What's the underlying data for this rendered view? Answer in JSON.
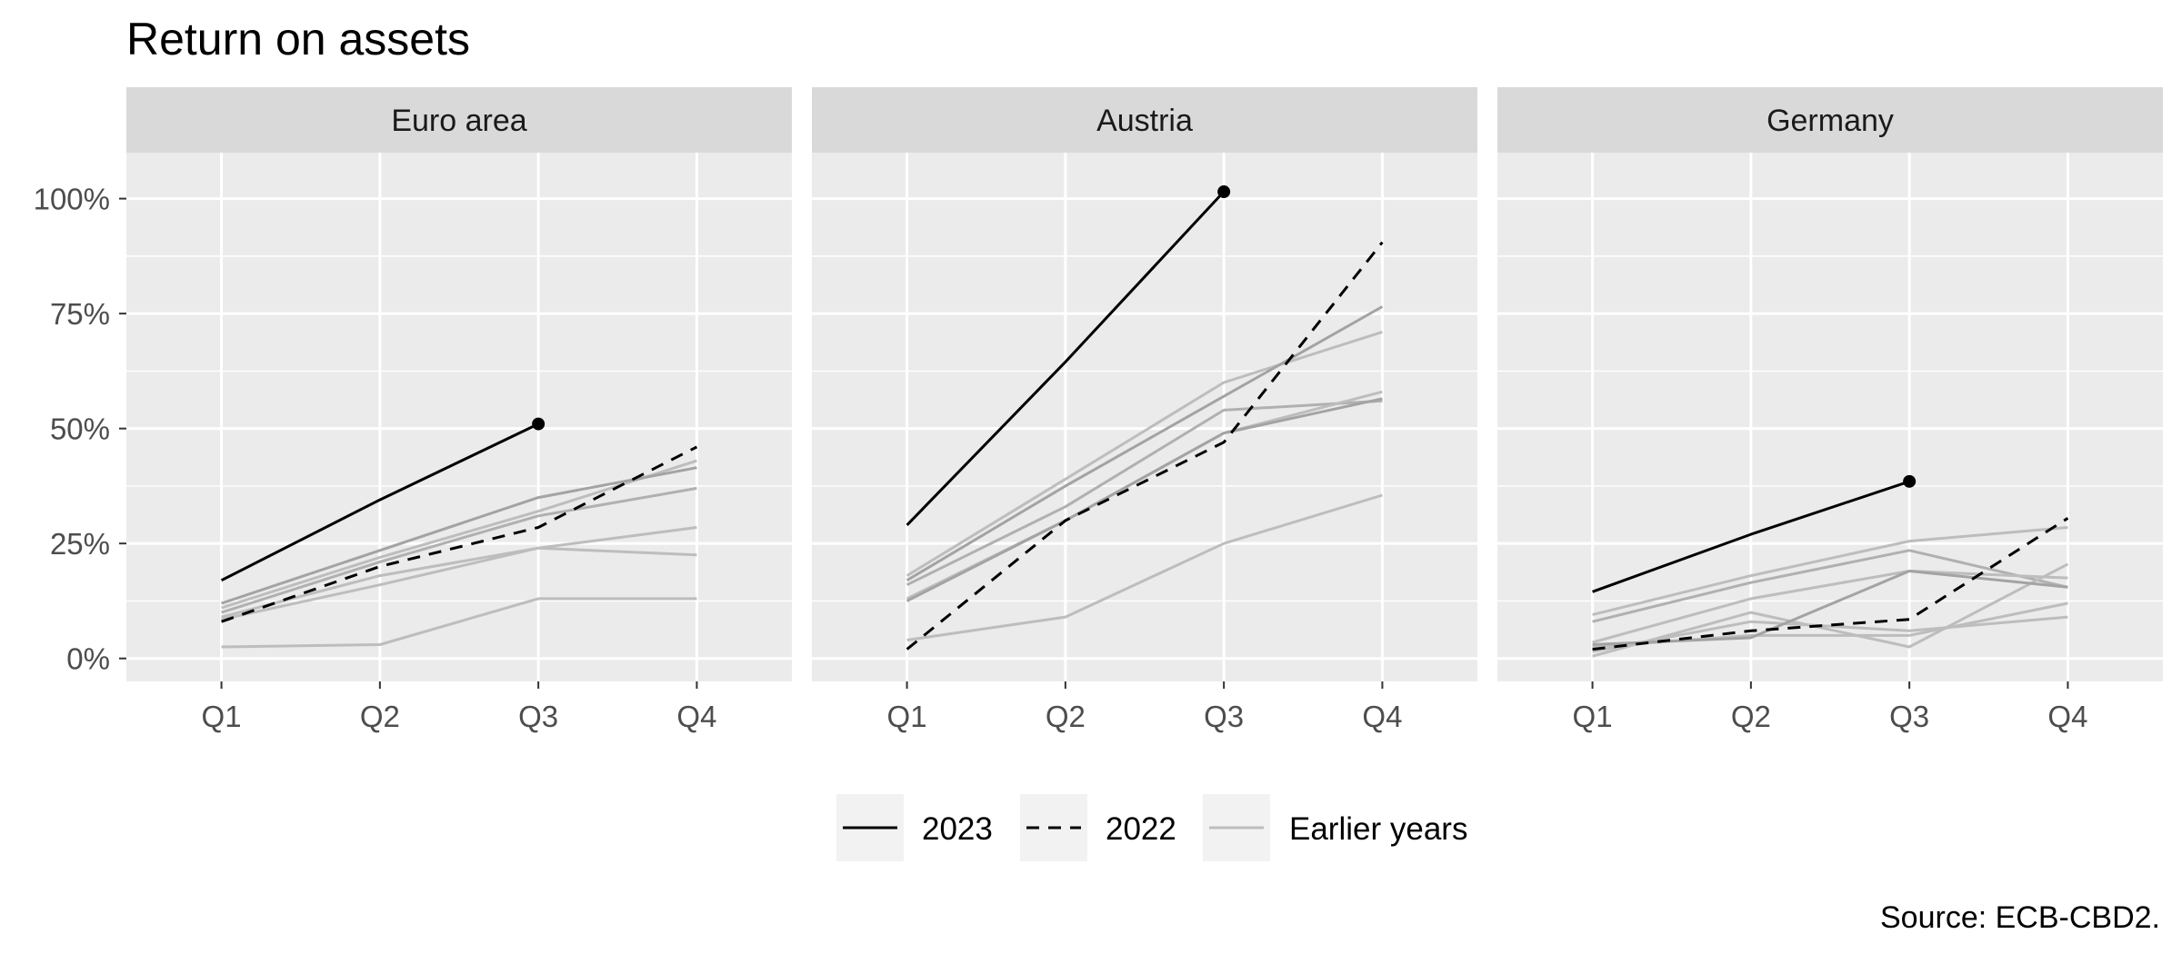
{
  "chart_data": {
    "type": "line",
    "title": "Return on assets",
    "caption": "Source: ECB-CBD2.",
    "xlabel": "",
    "ylabel": "",
    "categories": [
      "Q1",
      "Q2",
      "Q3",
      "Q4"
    ],
    "ylim": [
      -5,
      110
    ],
    "yticks": [
      0,
      25,
      50,
      75,
      100
    ],
    "ytick_labels": [
      "0%",
      "25%",
      "50%",
      "75%",
      "100%"
    ],
    "grid": true,
    "legend_position": "bottom",
    "legend": [
      {
        "label": "2023",
        "style": "solid",
        "color": "#000000"
      },
      {
        "label": "2022",
        "style": "dashed",
        "color": "#000000"
      },
      {
        "label": "Earlier years",
        "style": "solid",
        "color": "#bdbdbd"
      }
    ],
    "panels": [
      {
        "name": "Euro area",
        "series": [
          {
            "group": "Earlier years",
            "color": "#bdbdbd",
            "values": [
              11,
              22,
              32,
              43
            ]
          },
          {
            "group": "Earlier years",
            "color": "#b0b0b0",
            "values": [
              10,
              21,
              31,
              37
            ]
          },
          {
            "group": "Earlier years",
            "color": "#bdbdbd",
            "values": [
              9,
              18,
              24,
              28.5
            ]
          },
          {
            "group": "Earlier years",
            "color": "#bdbdbd",
            "values": [
              8.5,
              16,
              24,
              22.5
            ]
          },
          {
            "group": "Earlier years",
            "color": "#bdbdbd",
            "values": [
              2.5,
              3,
              13,
              13
            ]
          },
          {
            "group": "Earlier years",
            "color": "#a3a3a3",
            "values": [
              12,
              23.5,
              35,
              41.5
            ]
          },
          {
            "group": "2022",
            "color": "#000000",
            "values": [
              8,
              20,
              28.5,
              46
            ]
          },
          {
            "group": "2023",
            "color": "#000000",
            "values": [
              17,
              34.5,
              51
            ]
          }
        ]
      },
      {
        "name": "Austria",
        "series": [
          {
            "group": "Earlier years",
            "color": "#bdbdbd",
            "values": [
              18,
              39,
              60,
              71
            ]
          },
          {
            "group": "Earlier years",
            "color": "#b0b0b0",
            "values": [
              16,
              33,
              54,
              56
            ]
          },
          {
            "group": "Earlier years",
            "color": "#bdbdbd",
            "values": [
              13,
              30,
              49,
              58
            ]
          },
          {
            "group": "Earlier years",
            "color": "#bdbdbd",
            "values": [
              4,
              9,
              25,
              35.5
            ]
          },
          {
            "group": "Earlier years",
            "color": "#a3a3a3",
            "values": [
              17,
              37.5,
              57,
              76.5
            ]
          },
          {
            "group": "Earlier years",
            "color": "#a3a3a3",
            "values": [
              12.5,
              30,
              49,
              56.5
            ]
          },
          {
            "group": "2022",
            "color": "#000000",
            "values": [
              2,
              30,
              47,
              90.5
            ]
          },
          {
            "group": "2023",
            "color": "#000000",
            "values": [
              29,
              64.5,
              101.5
            ]
          }
        ]
      },
      {
        "name": "Germany",
        "series": [
          {
            "group": "Earlier years",
            "color": "#bdbdbd",
            "values": [
              9.5,
              18,
              25.5,
              28.5
            ]
          },
          {
            "group": "Earlier years",
            "color": "#b0b0b0",
            "values": [
              8,
              16.5,
              23.5,
              15.5
            ]
          },
          {
            "group": "Earlier years",
            "color": "#bdbdbd",
            "values": [
              3.5,
              13,
              19,
              17.5
            ]
          },
          {
            "group": "Earlier years",
            "color": "#bdbdbd",
            "values": [
              0.5,
              10,
              2.5,
              20.5
            ]
          },
          {
            "group": "Earlier years",
            "color": "#bdbdbd",
            "values": [
              2.5,
              5,
              5,
              12
            ]
          },
          {
            "group": "Earlier years",
            "color": "#bdbdbd",
            "values": [
              1.5,
              8,
              6,
              9
            ]
          },
          {
            "group": "Earlier years",
            "color": "#a3a3a3",
            "values": [
              3,
              4.5,
              19,
              15.5
            ]
          },
          {
            "group": "2022",
            "color": "#000000",
            "values": [
              2,
              6,
              8.5,
              30.5
            ]
          },
          {
            "group": "2023",
            "color": "#000000",
            "values": [
              14.5,
              27,
              38.5
            ]
          }
        ]
      }
    ]
  }
}
